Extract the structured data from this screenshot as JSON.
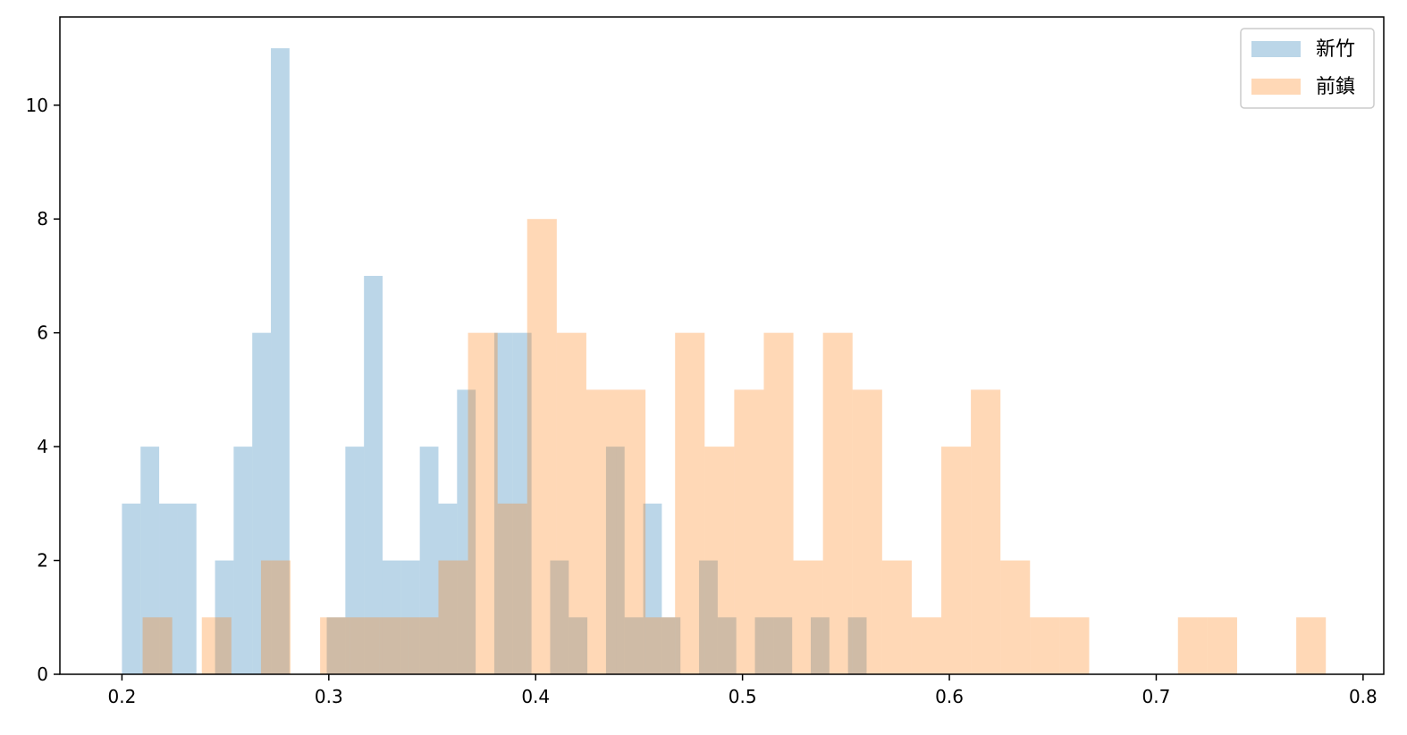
{
  "chart_data": {
    "type": "histogram",
    "title": "",
    "xlabel": "",
    "ylabel": "",
    "xlim": [
      0.17,
      0.81
    ],
    "ylim": [
      0,
      11.55
    ],
    "xticks": [
      0.2,
      0.3,
      0.4,
      0.5,
      0.6,
      0.7,
      0.8
    ],
    "xtick_labels": [
      "0.2",
      "0.3",
      "0.4",
      "0.5",
      "0.6",
      "0.7",
      "0.8"
    ],
    "yticks": [
      0,
      2,
      4,
      6,
      8,
      10
    ],
    "ytick_labels": [
      "0",
      "2",
      "4",
      "6",
      "8",
      "10"
    ],
    "grid": false,
    "legend": {
      "position": "top-right"
    },
    "series": [
      {
        "name": "新竹",
        "color": "#1f77b4",
        "alpha": 0.3,
        "bins": [
          [
            0.2,
            0.209,
            3
          ],
          [
            0.209,
            0.218,
            4
          ],
          [
            0.218,
            0.227,
            3
          ],
          [
            0.227,
            0.236,
            3
          ],
          [
            0.236,
            0.245,
            0
          ],
          [
            0.245,
            0.254,
            2
          ],
          [
            0.254,
            0.263,
            4
          ],
          [
            0.263,
            0.272,
            6
          ],
          [
            0.272,
            0.281,
            11
          ],
          [
            0.281,
            0.29,
            0
          ],
          [
            0.29,
            0.299,
            0
          ],
          [
            0.299,
            0.308,
            1
          ],
          [
            0.308,
            0.317,
            4
          ],
          [
            0.317,
            0.326,
            7
          ],
          [
            0.326,
            0.335,
            2
          ],
          [
            0.335,
            0.344,
            2
          ],
          [
            0.344,
            0.353,
            4
          ],
          [
            0.353,
            0.362,
            3
          ],
          [
            0.362,
            0.371,
            5
          ],
          [
            0.371,
            0.38,
            0
          ],
          [
            0.38,
            0.389,
            6
          ],
          [
            0.389,
            0.398,
            6
          ],
          [
            0.398,
            0.407,
            0
          ],
          [
            0.407,
            0.416,
            2
          ],
          [
            0.416,
            0.425,
            1
          ],
          [
            0.425,
            0.434,
            0
          ],
          [
            0.434,
            0.443,
            4
          ],
          [
            0.443,
            0.452,
            1
          ],
          [
            0.452,
            0.461,
            3
          ],
          [
            0.461,
            0.47,
            1
          ],
          [
            0.47,
            0.479,
            0
          ],
          [
            0.479,
            0.488,
            2
          ],
          [
            0.488,
            0.497,
            1
          ],
          [
            0.497,
            0.506,
            0
          ],
          [
            0.506,
            0.515,
            1
          ],
          [
            0.515,
            0.524,
            1
          ],
          [
            0.524,
            0.533,
            0
          ],
          [
            0.533,
            0.542,
            1
          ],
          [
            0.542,
            0.551,
            0
          ],
          [
            0.551,
            0.56,
            1
          ]
        ]
      },
      {
        "name": "前鎮",
        "color": "#ff7f0e",
        "alpha": 0.3,
        "bins": [
          [
            0.21,
            0.2243,
            1
          ],
          [
            0.2243,
            0.2386,
            0
          ],
          [
            0.2386,
            0.2529,
            1
          ],
          [
            0.2529,
            0.2672,
            0
          ],
          [
            0.2672,
            0.2815,
            2
          ],
          [
            0.2815,
            0.2958,
            0
          ],
          [
            0.2958,
            0.3101,
            1
          ],
          [
            0.3101,
            0.3244,
            1
          ],
          [
            0.3244,
            0.3387,
            1
          ],
          [
            0.3387,
            0.353,
            1
          ],
          [
            0.353,
            0.3673,
            2
          ],
          [
            0.3673,
            0.3816,
            6
          ],
          [
            0.3816,
            0.3959,
            3
          ],
          [
            0.3959,
            0.4102,
            8
          ],
          [
            0.4102,
            0.4245,
            6
          ],
          [
            0.4245,
            0.4388,
            5
          ],
          [
            0.4388,
            0.4531,
            5
          ],
          [
            0.4531,
            0.4674,
            1
          ],
          [
            0.4674,
            0.4817,
            6
          ],
          [
            0.4817,
            0.496,
            4
          ],
          [
            0.496,
            0.5103,
            5
          ],
          [
            0.5103,
            0.5246,
            6
          ],
          [
            0.5246,
            0.5389,
            2
          ],
          [
            0.5389,
            0.5532,
            6
          ],
          [
            0.5532,
            0.5675,
            5
          ],
          [
            0.5675,
            0.5818,
            2
          ],
          [
            0.5818,
            0.5961,
            1
          ],
          [
            0.5961,
            0.6104,
            4
          ],
          [
            0.6104,
            0.6247,
            5
          ],
          [
            0.6247,
            0.639,
            2
          ],
          [
            0.639,
            0.6533,
            1
          ],
          [
            0.6533,
            0.6676,
            1
          ],
          [
            0.6676,
            0.6819,
            0
          ],
          [
            0.6819,
            0.6962,
            0
          ],
          [
            0.6962,
            0.7105,
            0
          ],
          [
            0.7105,
            0.7248,
            1
          ],
          [
            0.7248,
            0.7391,
            1
          ],
          [
            0.7391,
            0.7534,
            0
          ],
          [
            0.7534,
            0.7677,
            0
          ],
          [
            0.7677,
            0.782,
            1
          ]
        ]
      }
    ]
  }
}
